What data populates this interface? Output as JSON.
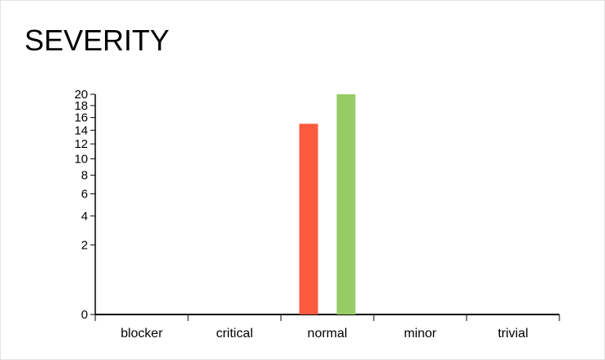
{
  "widget": {
    "title": "SEVERITY"
  },
  "chart_data": {
    "type": "bar",
    "categories": [
      "blocker",
      "critical",
      "normal",
      "minor",
      "trivial"
    ],
    "series": [
      {
        "color": "#fd5a3e",
        "values": [
          0,
          0,
          15,
          0,
          0
        ]
      },
      {
        "color": "#97cc64",
        "values": [
          0,
          0,
          20,
          0,
          0
        ]
      }
    ],
    "yscale": "sqrt",
    "yticks": [
      0,
      2,
      4,
      6,
      8,
      10,
      12,
      14,
      16,
      18,
      20
    ],
    "ylim": [
      0,
      20
    ],
    "xlabel": "",
    "ylabel": "",
    "grid": false,
    "legend": "none"
  }
}
